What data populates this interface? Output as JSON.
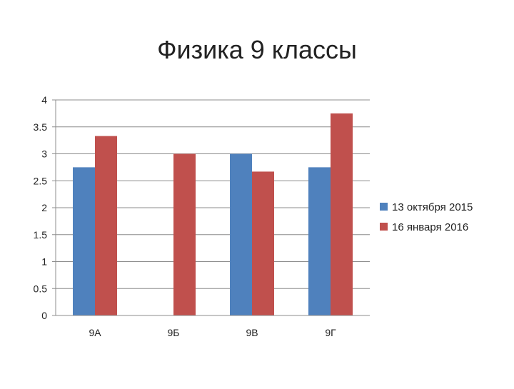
{
  "chart_data": {
    "type": "bar",
    "title": "Физика 9 классы",
    "xlabel": "",
    "ylabel": "",
    "categories": [
      "9А",
      "9Б",
      "9В",
      "9Г"
    ],
    "ylim": [
      0,
      4
    ],
    "yticks": [
      "0",
      "0.5",
      "1",
      "1.5",
      "2",
      "2.5",
      "3",
      "3.5",
      "4"
    ],
    "grid": true,
    "legend_position": "right",
    "series": [
      {
        "name": "13 октября 2015",
        "color": "#4f81bd",
        "values": [
          2.75,
          0,
          3.0,
          2.75
        ]
      },
      {
        "name": "16 января 2016",
        "color": "#c0504d",
        "values": [
          3.33,
          3.0,
          2.67,
          3.75
        ]
      }
    ]
  }
}
